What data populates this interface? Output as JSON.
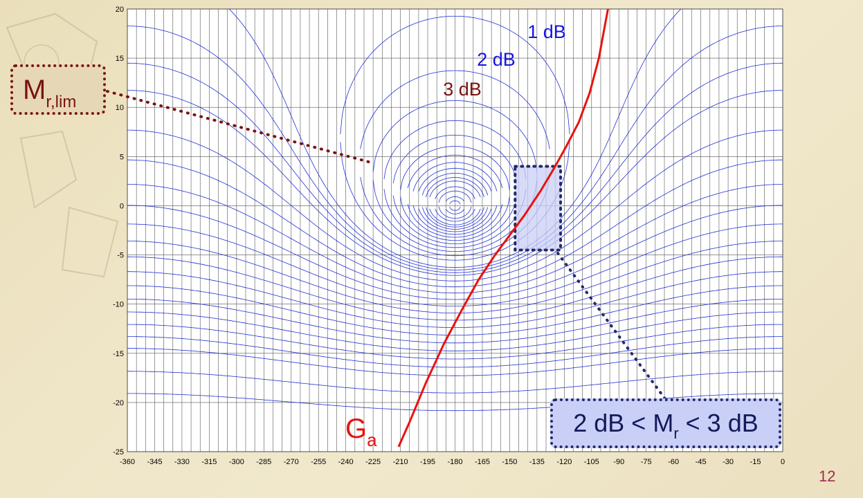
{
  "chart_data": {
    "type": "line",
    "title": "",
    "xlabel": "",
    "ylabel": "",
    "xlim": [
      -360,
      0
    ],
    "ylim": [
      -25,
      20
    ],
    "x_ticks": [
      -360,
      -345,
      -330,
      -315,
      -300,
      -285,
      -270,
      -255,
      -240,
      -225,
      -210,
      -195,
      -180,
      -165,
      -150,
      -135,
      -120,
      -105,
      -90,
      -75,
      -60,
      -45,
      -30,
      -15,
      0
    ],
    "y_ticks": [
      20,
      15,
      10,
      5,
      0,
      -5,
      -10,
      -15,
      -20,
      -25
    ],
    "grid": true,
    "contour_labels": [
      {
        "text": "1 dB",
        "color": "#1515e0"
      },
      {
        "text": "2 dB",
        "color": "#1515e0"
      },
      {
        "text": "3 dB",
        "color": "#7a1212"
      }
    ],
    "series": [
      {
        "name": "Ga",
        "color": "#e8120e",
        "x": [
          -211,
          -205,
          -196,
          -186,
          -176,
          -167,
          -158,
          -150,
          -142,
          -133,
          -125,
          -119,
          -112,
          -106,
          -101,
          -98,
          -96
        ],
        "y": [
          -24.5,
          -22,
          -18,
          -14,
          -10.5,
          -7.5,
          -5,
          -3,
          -1,
          1.5,
          4,
          6,
          8.5,
          11.5,
          15,
          18,
          20
        ]
      }
    ],
    "highlight_region": {
      "x": [
        -147,
        -122
      ],
      "y": [
        -4.5,
        4
      ]
    }
  },
  "annotations": {
    "mr_lim": {
      "base": "M",
      "sub": "r,lim"
    },
    "range": {
      "pre": "2 dB < M",
      "sub": "r",
      "post": " < 3 dB"
    },
    "ga": {
      "base": "G",
      "sub": "a"
    }
  },
  "colors": {
    "curve": "#e8120e",
    "contours": "#1f2fd6",
    "three_db_contour": "#7a1212",
    "callout_mr_border": "#7a1212",
    "callout_range_border": "#232a6a",
    "region_fill": "#c9cff6"
  },
  "page_number": "12"
}
